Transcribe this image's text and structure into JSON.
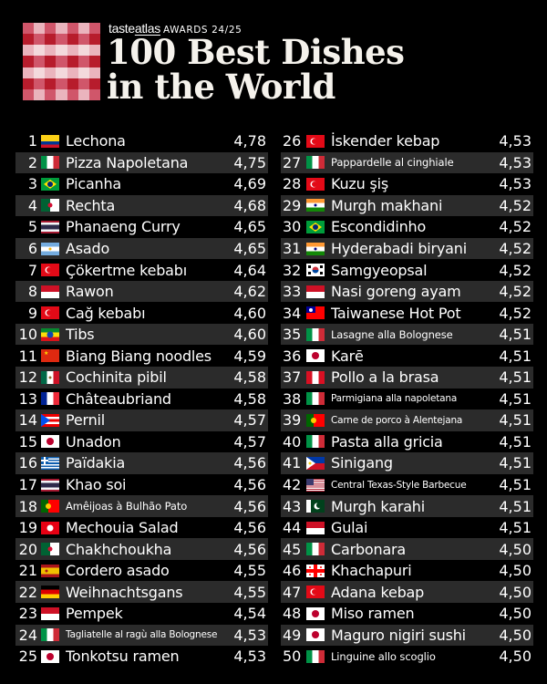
{
  "header": {
    "brand_name": "tasteatlas",
    "brand_prefix": "taste",
    "brand_suffix": "atlas",
    "awards_label": "AWARDS 24/25",
    "title_line1": "100 Best Dishes",
    "title_line2": "in the World"
  },
  "colors": {
    "background": "#000000",
    "row_alt": "#2b2b2b",
    "gingham_dark": "#b71c2c",
    "gingham_mid": "#d0566a",
    "gingham_light": "#eab4bd",
    "gingham_white": "#f3d9dc"
  },
  "rankings": [
    {
      "rank": "1",
      "flag": "colombia",
      "dish": "Lechona",
      "rating": "4,78"
    },
    {
      "rank": "2",
      "flag": "italy",
      "dish": "Pizza Napoletana",
      "rating": "4,75"
    },
    {
      "rank": "3",
      "flag": "brazil",
      "dish": "Picanha",
      "rating": "4,69"
    },
    {
      "rank": "4",
      "flag": "algeria",
      "dish": "Rechta",
      "rating": "4,68"
    },
    {
      "rank": "5",
      "flag": "thailand",
      "dish": "Phanaeng Curry",
      "rating": "4,65"
    },
    {
      "rank": "6",
      "flag": "argentina",
      "dish": "Asado",
      "rating": "4,65"
    },
    {
      "rank": "7",
      "flag": "turkey",
      "dish": "Çökertme kebabı",
      "rating": "4,64"
    },
    {
      "rank": "8",
      "flag": "indonesia",
      "dish": "Rawon",
      "rating": "4,62"
    },
    {
      "rank": "9",
      "flag": "turkey",
      "dish": "Cağ kebabı",
      "rating": "4,60"
    },
    {
      "rank": "10",
      "flag": "ethiopia",
      "dish": "Tibs",
      "rating": "4,60"
    },
    {
      "rank": "11",
      "flag": "china",
      "dish": "Biang Biang noodles",
      "rating": "4,59"
    },
    {
      "rank": "12",
      "flag": "mexico",
      "dish": "Cochinita pibil",
      "rating": "4,58"
    },
    {
      "rank": "13",
      "flag": "france",
      "dish": "Châteaubriand",
      "rating": "4,58"
    },
    {
      "rank": "14",
      "flag": "puerto-rico",
      "dish": "Pernil",
      "rating": "4,57"
    },
    {
      "rank": "15",
      "flag": "japan",
      "dish": "Unadon",
      "rating": "4,57"
    },
    {
      "rank": "16",
      "flag": "greece",
      "dish": "Païdakia",
      "rating": "4,56"
    },
    {
      "rank": "17",
      "flag": "thailand",
      "dish": "Khao soi",
      "rating": "4,56"
    },
    {
      "rank": "18",
      "flag": "portugal",
      "dish": "Amêijoas à Bulhão Pato",
      "rating": "4,56"
    },
    {
      "rank": "19",
      "flag": "tunisia",
      "dish": "Mechouia Salad",
      "rating": "4,56"
    },
    {
      "rank": "20",
      "flag": "algeria",
      "dish": "Chakhchoukha",
      "rating": "4,56"
    },
    {
      "rank": "21",
      "flag": "spain",
      "dish": "Cordero asado",
      "rating": "4,55"
    },
    {
      "rank": "22",
      "flag": "germany",
      "dish": "Weihnachtsgans",
      "rating": "4,55"
    },
    {
      "rank": "23",
      "flag": "indonesia",
      "dish": "Pempek",
      "rating": "4,54"
    },
    {
      "rank": "24",
      "flag": "italy",
      "dish": "Tagliatelle al ragù alla Bolognese",
      "rating": "4,53"
    },
    {
      "rank": "25",
      "flag": "japan",
      "dish": "Tonkotsu ramen",
      "rating": "4,53"
    },
    {
      "rank": "26",
      "flag": "turkey",
      "dish": "İskender kebap",
      "rating": "4,53"
    },
    {
      "rank": "27",
      "flag": "italy",
      "dish": "Pappardelle al cinghiale",
      "rating": "4,53"
    },
    {
      "rank": "28",
      "flag": "turkey",
      "dish": "Kuzu şiş",
      "rating": "4,53"
    },
    {
      "rank": "29",
      "flag": "india",
      "dish": "Murgh makhani",
      "rating": "4,52"
    },
    {
      "rank": "30",
      "flag": "brazil",
      "dish": "Escondidinho",
      "rating": "4,52"
    },
    {
      "rank": "31",
      "flag": "india",
      "dish": "Hyderabadi biryani",
      "rating": "4,52"
    },
    {
      "rank": "32",
      "flag": "south-korea",
      "dish": "Samgyeopsal",
      "rating": "4,52"
    },
    {
      "rank": "33",
      "flag": "indonesia",
      "dish": "Nasi goreng ayam",
      "rating": "4,52"
    },
    {
      "rank": "34",
      "flag": "taiwan",
      "dish": "Taiwanese Hot Pot",
      "rating": "4,52"
    },
    {
      "rank": "35",
      "flag": "italy",
      "dish": "Lasagne alla Bolognese",
      "rating": "4,51"
    },
    {
      "rank": "36",
      "flag": "japan",
      "dish": "Karē",
      "rating": "4,51"
    },
    {
      "rank": "37",
      "flag": "peru",
      "dish": "Pollo a la brasa",
      "rating": "4,51"
    },
    {
      "rank": "38",
      "flag": "italy",
      "dish": "Parmigiana alla napoletana",
      "rating": "4,51"
    },
    {
      "rank": "39",
      "flag": "portugal",
      "dish": "Carne de porco à Alentejana",
      "rating": "4,51"
    },
    {
      "rank": "40",
      "flag": "italy",
      "dish": "Pasta alla gricia",
      "rating": "4,51"
    },
    {
      "rank": "41",
      "flag": "philippines",
      "dish": "Sinigang",
      "rating": "4,51"
    },
    {
      "rank": "42",
      "flag": "usa",
      "dish": "Central Texas-Style Barbecue",
      "rating": "4,51"
    },
    {
      "rank": "43",
      "flag": "pakistan",
      "dish": "Murgh karahi",
      "rating": "4,51"
    },
    {
      "rank": "44",
      "flag": "indonesia",
      "dish": "Gulai",
      "rating": "4,51"
    },
    {
      "rank": "45",
      "flag": "italy",
      "dish": "Carbonara",
      "rating": "4,50"
    },
    {
      "rank": "46",
      "flag": "georgia",
      "dish": "Khachapuri",
      "rating": "4,50"
    },
    {
      "rank": "47",
      "flag": "turkey",
      "dish": "Adana kebap",
      "rating": "4,50"
    },
    {
      "rank": "48",
      "flag": "japan",
      "dish": "Miso ramen",
      "rating": "4,50"
    },
    {
      "rank": "49",
      "flag": "japan",
      "dish": "Maguro nigiri sushi",
      "rating": "4,50"
    },
    {
      "rank": "50",
      "flag": "italy",
      "dish": "Linguine allo scoglio",
      "rating": "4,50"
    }
  ]
}
